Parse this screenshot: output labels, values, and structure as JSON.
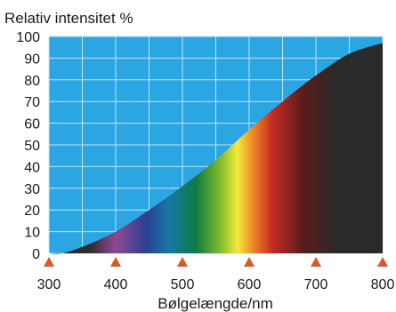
{
  "chart_data": {
    "type": "area",
    "title": "Relativ intensitet %",
    "xlabel": "Bølgelængde/nm",
    "ylabel": "",
    "xlim": [
      300,
      800
    ],
    "ylim": [
      0,
      100
    ],
    "x_ticks": [
      300,
      400,
      500,
      600,
      700,
      800
    ],
    "y_ticks": [
      0,
      10,
      20,
      30,
      40,
      50,
      60,
      70,
      80,
      90,
      100
    ],
    "x_tick_labels": [
      "300",
      "400",
      "500",
      "600",
      "700",
      "800"
    ],
    "y_tick_labels": [
      "0",
      "10",
      "20",
      "30",
      "40",
      "50",
      "60",
      "70",
      "80",
      "90",
      "100"
    ],
    "grid": true,
    "grid_x_step": 50,
    "grid_y_step": 10,
    "series": [
      {
        "x": [
          300,
          320,
          350,
          400,
          450,
          500,
          550,
          600,
          650,
          700,
          750,
          800
        ],
        "values": [
          0,
          0,
          3,
          10,
          20,
          31,
          43,
          57,
          70,
          82,
          92,
          97
        ]
      }
    ],
    "axis_markers_x": [
      300,
      400,
      500,
      600,
      700,
      800
    ],
    "colors": {
      "plot_background": "#2aa7e2",
      "grid": "#c5e3f5",
      "marker": "#d95a28",
      "text": "#1a1a1a",
      "uv": "#2b2b2b",
      "violet": "#8e4a92",
      "blue": "#2c3f95",
      "cyan": "#1579a6",
      "green": "#0c7b41",
      "yellow_green": "#8fbf2c",
      "yellow": "#f5ea3a",
      "orange": "#ef8a28",
      "red": "#c42b22",
      "dark_red": "#5a1c1c",
      "infrared": "#2a2a2a"
    }
  }
}
